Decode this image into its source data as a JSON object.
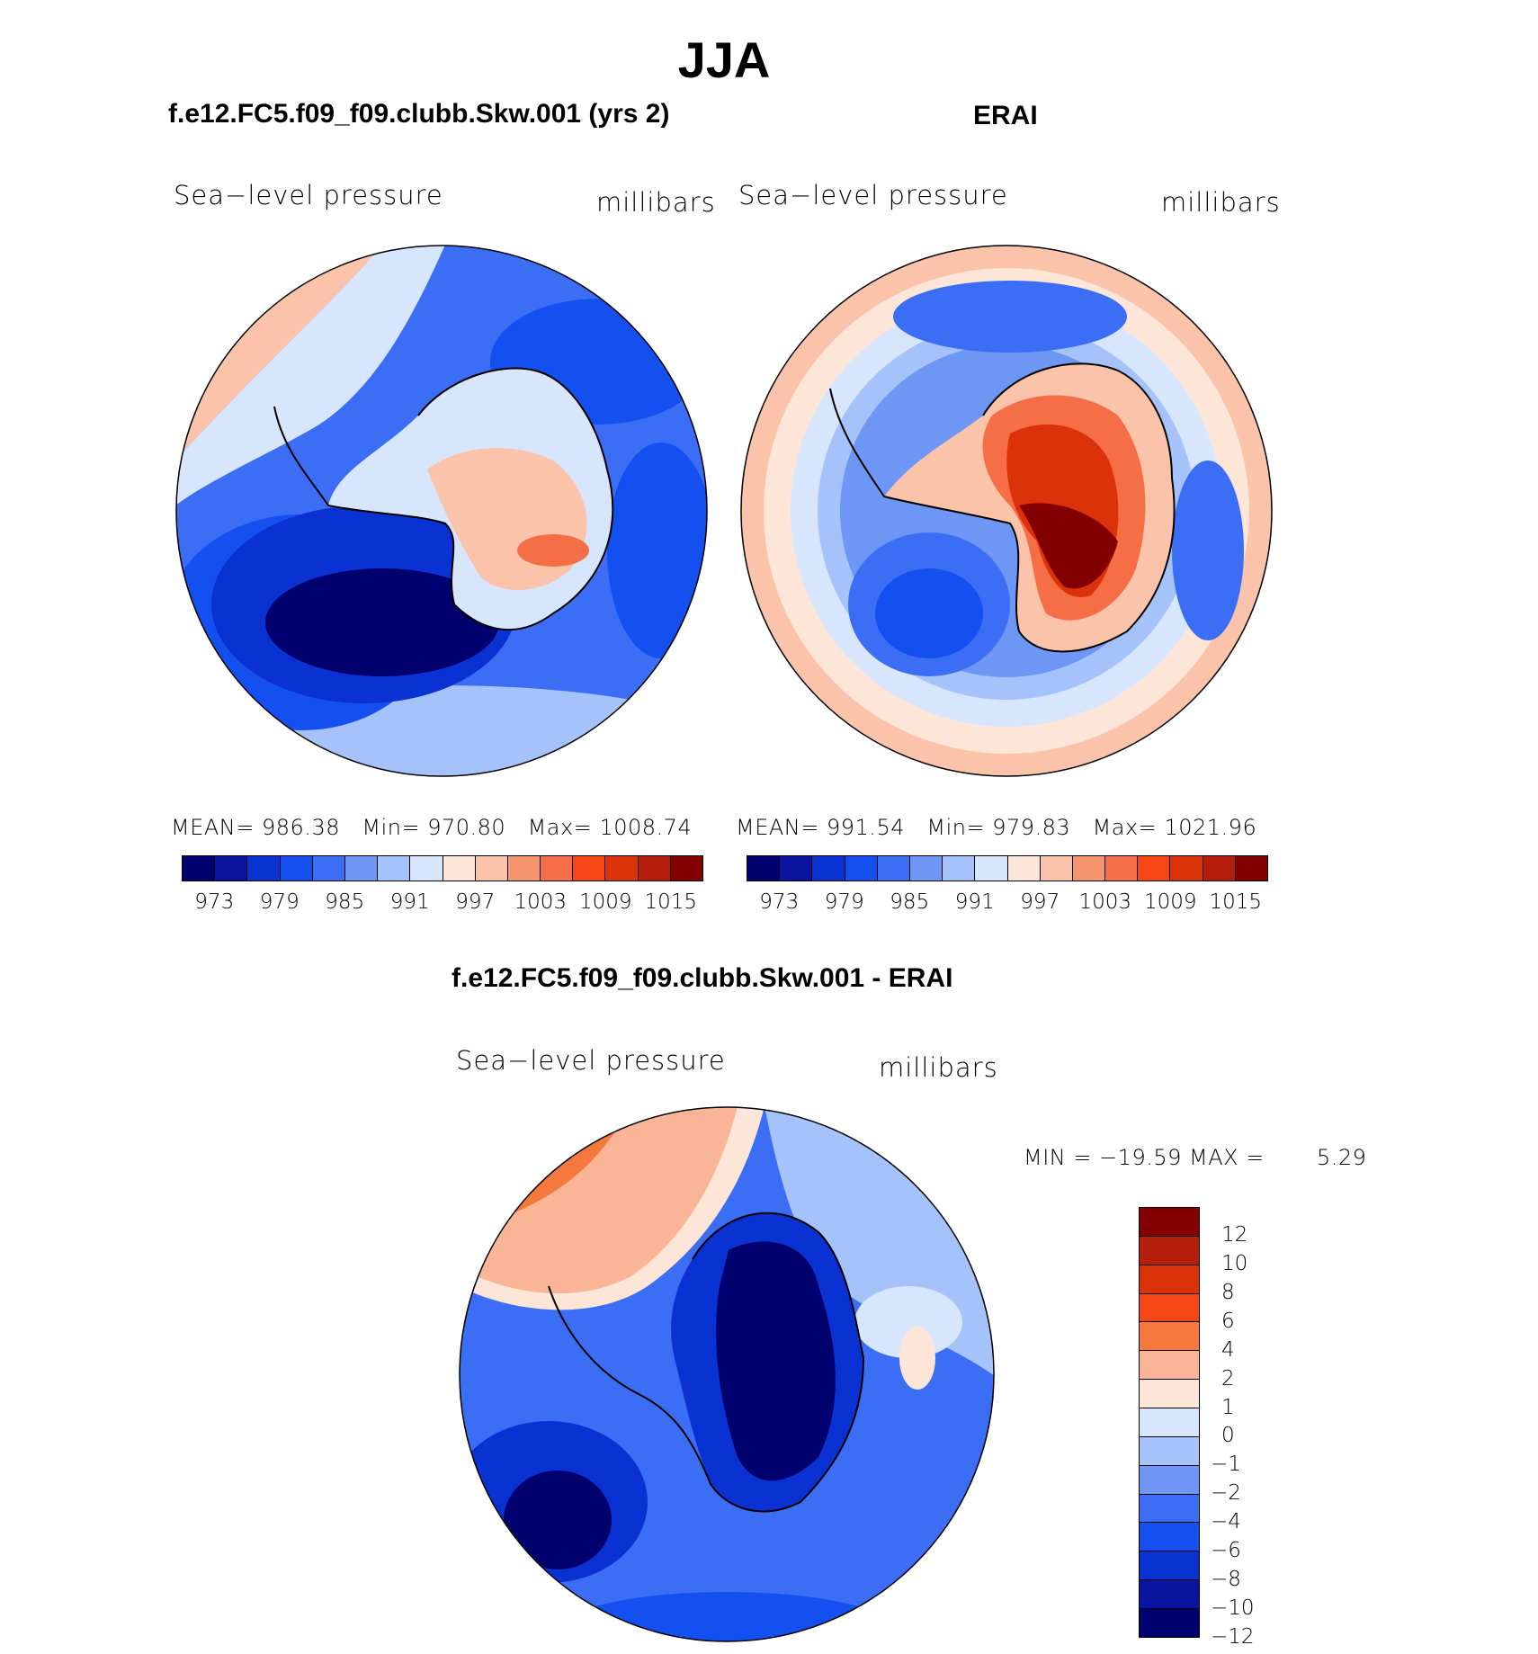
{
  "title": "JJA",
  "colors": {
    "abs_scale": [
      "#00006e",
      "#0a14a0",
      "#0a32d2",
      "#1450f0",
      "#3c6ef5",
      "#6e96f5",
      "#a5c3fa",
      "#d7e6fc",
      "#fde6d7",
      "#fac3aa",
      "#f5966e",
      "#f56e46",
      "#f54614",
      "#dc320a",
      "#b41e0a",
      "#820000"
    ],
    "diff_scale": [
      "#820000",
      "#b41e0a",
      "#dc320a",
      "#f54614",
      "#f5783c",
      "#fab496",
      "#fde6d7",
      "#d7e6fc",
      "#a5c3fa",
      "#6e96f5",
      "#3c6ef5",
      "#1450f0",
      "#0a32d2",
      "#0a14a0",
      "#00006e"
    ]
  },
  "chart_data": [
    {
      "type": "polar_contour",
      "panel": "model",
      "title": "f.e12.FC5.f09_f09.clubb.Skw.001 (yrs 2)",
      "variable": "Sea−level pressure",
      "units": "millibars",
      "stats": {
        "mean_label": "MEAN=",
        "mean": "986.38",
        "min_label": "Min=",
        "min": "970.80",
        "max_label": "Max=",
        "max": "1008.74"
      },
      "levels": [
        "973",
        "979",
        "985",
        "991",
        "997",
        "1003",
        "1009",
        "1015"
      ],
      "fill": {
        "ring": "#5a8af4",
        "land": "#fac3aa",
        "low": "#00006e"
      }
    },
    {
      "type": "polar_contour",
      "panel": "obs",
      "title": "ERAI",
      "variable": "Sea−level pressure",
      "units": "millibars",
      "stats": {
        "mean_label": "MEAN=",
        "mean": "991.54",
        "min_label": "Min=",
        "min": "979.83",
        "max_label": "Max=",
        "max": "1021.96"
      },
      "levels": [
        "973",
        "979",
        "985",
        "991",
        "997",
        "1003",
        "1009",
        "1015"
      ],
      "fill": {
        "ring": "#a5c3fa",
        "land": "#dc320a",
        "low": "#1450f0"
      }
    },
    {
      "type": "polar_contour",
      "panel": "difference",
      "title": "f.e12.FC5.f09_f09.clubb.Skw.001 - ERAI",
      "variable": "Sea−level pressure",
      "units": "millibars",
      "stats": {
        "range_text": "MIN = −19.59 MAX =",
        "max": "5.29"
      },
      "levels": [
        "12",
        "10",
        "8",
        "6",
        "4",
        "2",
        "1",
        "0",
        "−1",
        "−2",
        "−4",
        "−6",
        "−8",
        "−10",
        "−12"
      ],
      "fill": {
        "ring": "#3c6ef5",
        "land": "#00006e",
        "high": "#f5966e"
      }
    }
  ]
}
